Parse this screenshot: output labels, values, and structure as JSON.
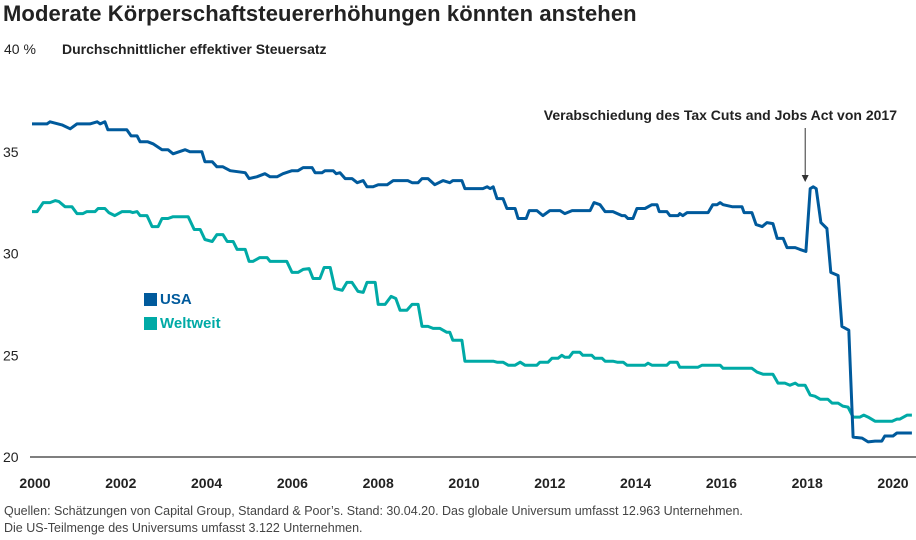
{
  "title": "Moderate Körperschaftsteuererhöhungen könnten anstehen",
  "footer": {
    "line1": "Quellen: Schätzungen von Capital Group, Standard & Poor’s. Stand: 30.04.20. Das globale Universum umfasst 12.963 Unternehmen.",
    "line2": "Die US-Teilmenge des Universums umfasst 3.122 Unternehmen."
  },
  "chart_data": {
    "type": "line",
    "title": "Moderate Körperschaftsteuererhöhungen könnten anstehen",
    "ylabel": "Durchschnittlicher effektiver Steuersatz",
    "ytop_label": "40 %",
    "ylim": [
      20,
      40
    ],
    "xlim": [
      2000,
      2020.45
    ],
    "yticks": [
      "35",
      "30",
      "25",
      "20"
    ],
    "ytick_values": [
      35,
      30,
      25,
      20
    ],
    "xticks": [
      "2000",
      "2002",
      "2004",
      "2006",
      "2008",
      "2010",
      "2012",
      "2014",
      "2016",
      "2018",
      "2020"
    ],
    "xtick_values": [
      2000,
      2002,
      2004,
      2006,
      2008,
      2010,
      2012,
      2014,
      2016,
      2018,
      2020
    ],
    "grid": false,
    "legend_position": "center-left",
    "annotation": {
      "text": "Verabschiedung des Tax Cuts and Jobs Act von 2017",
      "x": 2018.0,
      "y": 33.3
    },
    "series": [
      {
        "name": "USA",
        "color": "#005a9c",
        "points": [
          [
            1999.93,
            36.37
          ],
          [
            2000.28,
            36.37
          ],
          [
            2000.35,
            36.47
          ],
          [
            2000.63,
            36.32
          ],
          [
            2000.82,
            36.13
          ],
          [
            2000.98,
            36.37
          ],
          [
            2001.28,
            36.37
          ],
          [
            2001.45,
            36.47
          ],
          [
            2001.52,
            36.37
          ],
          [
            2001.63,
            36.47
          ],
          [
            2001.7,
            36.08
          ],
          [
            2002.14,
            36.08
          ],
          [
            2002.24,
            35.78
          ],
          [
            2002.38,
            35.78
          ],
          [
            2002.45,
            35.49
          ],
          [
            2002.63,
            35.49
          ],
          [
            2002.75,
            35.39
          ],
          [
            2002.96,
            35.1
          ],
          [
            2003.1,
            35.1
          ],
          [
            2003.22,
            34.9
          ],
          [
            2003.5,
            35.1
          ],
          [
            2003.61,
            35.0
          ],
          [
            2003.89,
            35.0
          ],
          [
            2003.96,
            34.51
          ],
          [
            2004.13,
            34.51
          ],
          [
            2004.24,
            34.26
          ],
          [
            2004.38,
            34.26
          ],
          [
            2004.55,
            34.07
          ],
          [
            2004.9,
            33.97
          ],
          [
            2004.99,
            33.68
          ],
          [
            2005.17,
            33.77
          ],
          [
            2005.36,
            33.92
          ],
          [
            2005.48,
            33.77
          ],
          [
            2005.64,
            33.77
          ],
          [
            2005.78,
            33.92
          ],
          [
            2005.99,
            34.07
          ],
          [
            2006.13,
            34.07
          ],
          [
            2006.25,
            34.22
          ],
          [
            2006.46,
            34.22
          ],
          [
            2006.53,
            33.97
          ],
          [
            2006.69,
            33.97
          ],
          [
            2006.76,
            34.07
          ],
          [
            2006.95,
            34.07
          ],
          [
            2007.02,
            33.92
          ],
          [
            2007.11,
            33.97
          ],
          [
            2007.23,
            33.68
          ],
          [
            2007.39,
            33.68
          ],
          [
            2007.51,
            33.48
          ],
          [
            2007.65,
            33.58
          ],
          [
            2007.74,
            33.28
          ],
          [
            2007.88,
            33.28
          ],
          [
            2008.0,
            33.38
          ],
          [
            2008.21,
            33.38
          ],
          [
            2008.35,
            33.58
          ],
          [
            2008.69,
            33.58
          ],
          [
            2008.79,
            33.48
          ],
          [
            2008.93,
            33.48
          ],
          [
            2009.02,
            33.68
          ],
          [
            2009.16,
            33.68
          ],
          [
            2009.32,
            33.38
          ],
          [
            2009.51,
            33.58
          ],
          [
            2009.67,
            33.48
          ],
          [
            2009.74,
            33.58
          ],
          [
            2009.84,
            33.58
          ],
          [
            2009.95,
            33.58
          ],
          [
            2010.02,
            33.19
          ],
          [
            2010.44,
            33.19
          ],
          [
            2010.54,
            33.28
          ],
          [
            2010.61,
            33.19
          ],
          [
            2010.68,
            33.28
          ],
          [
            2010.77,
            32.7
          ],
          [
            2010.91,
            32.7
          ],
          [
            2011.0,
            32.21
          ],
          [
            2011.19,
            32.21
          ],
          [
            2011.26,
            31.72
          ],
          [
            2011.45,
            31.72
          ],
          [
            2011.52,
            32.11
          ],
          [
            2011.7,
            32.11
          ],
          [
            2011.84,
            31.86
          ],
          [
            2012.0,
            32.11
          ],
          [
            2012.24,
            32.11
          ],
          [
            2012.35,
            31.96
          ],
          [
            2012.52,
            32.11
          ],
          [
            2012.94,
            32.11
          ],
          [
            2013.03,
            32.5
          ],
          [
            2013.17,
            32.4
          ],
          [
            2013.29,
            32.06
          ],
          [
            2013.47,
            32.06
          ],
          [
            2013.68,
            31.86
          ],
          [
            2013.75,
            31.86
          ],
          [
            2013.82,
            31.72
          ],
          [
            2013.94,
            31.72
          ],
          [
            2014.03,
            32.21
          ],
          [
            2014.22,
            32.21
          ],
          [
            2014.38,
            32.4
          ],
          [
            2014.5,
            32.4
          ],
          [
            2014.55,
            32.06
          ],
          [
            2014.73,
            32.06
          ],
          [
            2014.8,
            31.86
          ],
          [
            2014.99,
            31.86
          ],
          [
            2015.03,
            31.96
          ],
          [
            2015.1,
            31.86
          ],
          [
            2015.2,
            32.01
          ],
          [
            2015.69,
            32.01
          ],
          [
            2015.8,
            32.4
          ],
          [
            2015.9,
            32.4
          ],
          [
            2015.97,
            32.5
          ],
          [
            2016.04,
            32.4
          ],
          [
            2016.25,
            32.3
          ],
          [
            2016.48,
            32.3
          ],
          [
            2016.53,
            32.01
          ],
          [
            2016.71,
            32.01
          ],
          [
            2016.81,
            31.42
          ],
          [
            2016.95,
            31.32
          ],
          [
            2017.06,
            31.52
          ],
          [
            2017.2,
            31.47
          ],
          [
            2017.3,
            30.74
          ],
          [
            2017.44,
            30.74
          ],
          [
            2017.53,
            30.29
          ],
          [
            2017.72,
            30.29
          ],
          [
            2017.83,
            30.2
          ],
          [
            2017.97,
            30.1
          ],
          [
            2018.07,
            33.19
          ],
          [
            2018.14,
            33.28
          ],
          [
            2018.21,
            33.19
          ],
          [
            2018.32,
            31.52
          ],
          [
            2018.46,
            31.23
          ],
          [
            2018.55,
            29.07
          ],
          [
            2018.72,
            28.92
          ],
          [
            2018.81,
            26.42
          ],
          [
            2018.97,
            26.23
          ],
          [
            2019.07,
            20.98
          ],
          [
            2019.28,
            20.93
          ],
          [
            2019.42,
            20.74
          ],
          [
            2019.58,
            20.78
          ],
          [
            2019.74,
            20.78
          ],
          [
            2019.81,
            21.03
          ],
          [
            2020.0,
            21.03
          ],
          [
            2020.09,
            21.18
          ],
          [
            2020.44,
            21.18
          ]
        ]
      },
      {
        "name": "Weltweit",
        "color": "#00aaa6",
        "points": [
          [
            1999.93,
            32.06
          ],
          [
            2000.05,
            32.06
          ],
          [
            2000.19,
            32.5
          ],
          [
            2000.35,
            32.5
          ],
          [
            2000.47,
            32.6
          ],
          [
            2000.56,
            32.55
          ],
          [
            2000.7,
            32.3
          ],
          [
            2000.86,
            32.3
          ],
          [
            2000.98,
            31.96
          ],
          [
            2001.12,
            31.96
          ],
          [
            2001.21,
            32.06
          ],
          [
            2001.4,
            32.06
          ],
          [
            2001.47,
            32.21
          ],
          [
            2001.63,
            32.21
          ],
          [
            2001.72,
            32.01
          ],
          [
            2001.86,
            31.86
          ],
          [
            2002.03,
            32.06
          ],
          [
            2002.21,
            32.06
          ],
          [
            2002.28,
            32.01
          ],
          [
            2002.38,
            32.06
          ],
          [
            2002.45,
            31.86
          ],
          [
            2002.61,
            31.86
          ],
          [
            2002.73,
            31.32
          ],
          [
            2002.87,
            31.32
          ],
          [
            2002.96,
            31.72
          ],
          [
            2003.1,
            31.72
          ],
          [
            2003.22,
            31.81
          ],
          [
            2003.57,
            31.81
          ],
          [
            2003.71,
            31.18
          ],
          [
            2003.85,
            31.18
          ],
          [
            2003.96,
            30.69
          ],
          [
            2004.13,
            30.59
          ],
          [
            2004.24,
            30.93
          ],
          [
            2004.38,
            30.93
          ],
          [
            2004.48,
            30.59
          ],
          [
            2004.62,
            30.59
          ],
          [
            2004.71,
            30.2
          ],
          [
            2004.9,
            30.2
          ],
          [
            2004.99,
            29.61
          ],
          [
            2005.08,
            29.61
          ],
          [
            2005.24,
            29.8
          ],
          [
            2005.41,
            29.8
          ],
          [
            2005.48,
            29.61
          ],
          [
            2005.87,
            29.61
          ],
          [
            2005.99,
            29.07
          ],
          [
            2006.13,
            29.07
          ],
          [
            2006.25,
            29.22
          ],
          [
            2006.39,
            29.26
          ],
          [
            2006.48,
            28.77
          ],
          [
            2006.64,
            28.77
          ],
          [
            2006.74,
            29.31
          ],
          [
            2006.88,
            29.31
          ],
          [
            2006.99,
            28.28
          ],
          [
            2007.16,
            28.19
          ],
          [
            2007.27,
            28.58
          ],
          [
            2007.39,
            28.58
          ],
          [
            2007.53,
            28.14
          ],
          [
            2007.65,
            28.09
          ],
          [
            2007.74,
            28.58
          ],
          [
            2007.93,
            28.58
          ],
          [
            2008.0,
            27.5
          ],
          [
            2008.16,
            27.5
          ],
          [
            2008.3,
            27.89
          ],
          [
            2008.41,
            27.79
          ],
          [
            2008.51,
            27.21
          ],
          [
            2008.67,
            27.21
          ],
          [
            2008.79,
            27.5
          ],
          [
            2008.93,
            27.5
          ],
          [
            2009.02,
            26.42
          ],
          [
            2009.16,
            26.42
          ],
          [
            2009.28,
            26.32
          ],
          [
            2009.44,
            26.32
          ],
          [
            2009.6,
            26.13
          ],
          [
            2009.67,
            26.13
          ],
          [
            2009.74,
            25.74
          ],
          [
            2009.95,
            25.74
          ],
          [
            2010.02,
            24.71
          ],
          [
            2010.68,
            24.71
          ],
          [
            2010.77,
            24.66
          ],
          [
            2010.91,
            24.66
          ],
          [
            2011.03,
            24.51
          ],
          [
            2011.19,
            24.51
          ],
          [
            2011.31,
            24.66
          ],
          [
            2011.42,
            24.51
          ],
          [
            2011.7,
            24.51
          ],
          [
            2011.77,
            24.66
          ],
          [
            2011.96,
            24.66
          ],
          [
            2012.05,
            24.85
          ],
          [
            2012.19,
            24.85
          ],
          [
            2012.28,
            25.0
          ],
          [
            2012.35,
            24.9
          ],
          [
            2012.45,
            24.9
          ],
          [
            2012.54,
            25.15
          ],
          [
            2012.7,
            25.15
          ],
          [
            2012.77,
            25.0
          ],
          [
            2012.98,
            25.0
          ],
          [
            2013.05,
            24.85
          ],
          [
            2013.22,
            24.85
          ],
          [
            2013.29,
            24.71
          ],
          [
            2013.47,
            24.71
          ],
          [
            2013.57,
            24.66
          ],
          [
            2013.71,
            24.66
          ],
          [
            2013.8,
            24.51
          ],
          [
            2014.22,
            24.51
          ],
          [
            2014.29,
            24.61
          ],
          [
            2014.38,
            24.51
          ],
          [
            2014.73,
            24.51
          ],
          [
            2014.8,
            24.66
          ],
          [
            2014.97,
            24.66
          ],
          [
            2015.03,
            24.41
          ],
          [
            2015.45,
            24.41
          ],
          [
            2015.55,
            24.51
          ],
          [
            2015.97,
            24.51
          ],
          [
            2016.04,
            24.36
          ],
          [
            2016.71,
            24.36
          ],
          [
            2016.83,
            24.17
          ],
          [
            2016.97,
            24.07
          ],
          [
            2017.2,
            24.07
          ],
          [
            2017.32,
            23.63
          ],
          [
            2017.48,
            23.63
          ],
          [
            2017.6,
            23.53
          ],
          [
            2017.72,
            23.63
          ],
          [
            2017.79,
            23.53
          ],
          [
            2017.95,
            23.53
          ],
          [
            2018.07,
            23.04
          ],
          [
            2018.18,
            22.99
          ],
          [
            2018.3,
            22.84
          ],
          [
            2018.48,
            22.84
          ],
          [
            2018.58,
            22.65
          ],
          [
            2018.72,
            22.65
          ],
          [
            2018.83,
            22.5
          ],
          [
            2018.95,
            22.45
          ],
          [
            2019.07,
            21.96
          ],
          [
            2019.23,
            21.96
          ],
          [
            2019.32,
            22.06
          ],
          [
            2019.42,
            21.96
          ],
          [
            2019.58,
            21.76
          ],
          [
            2019.98,
            21.76
          ],
          [
            2020.09,
            21.86
          ],
          [
            2020.16,
            21.86
          ],
          [
            2020.33,
            22.06
          ],
          [
            2020.44,
            22.06
          ]
        ]
      }
    ]
  }
}
